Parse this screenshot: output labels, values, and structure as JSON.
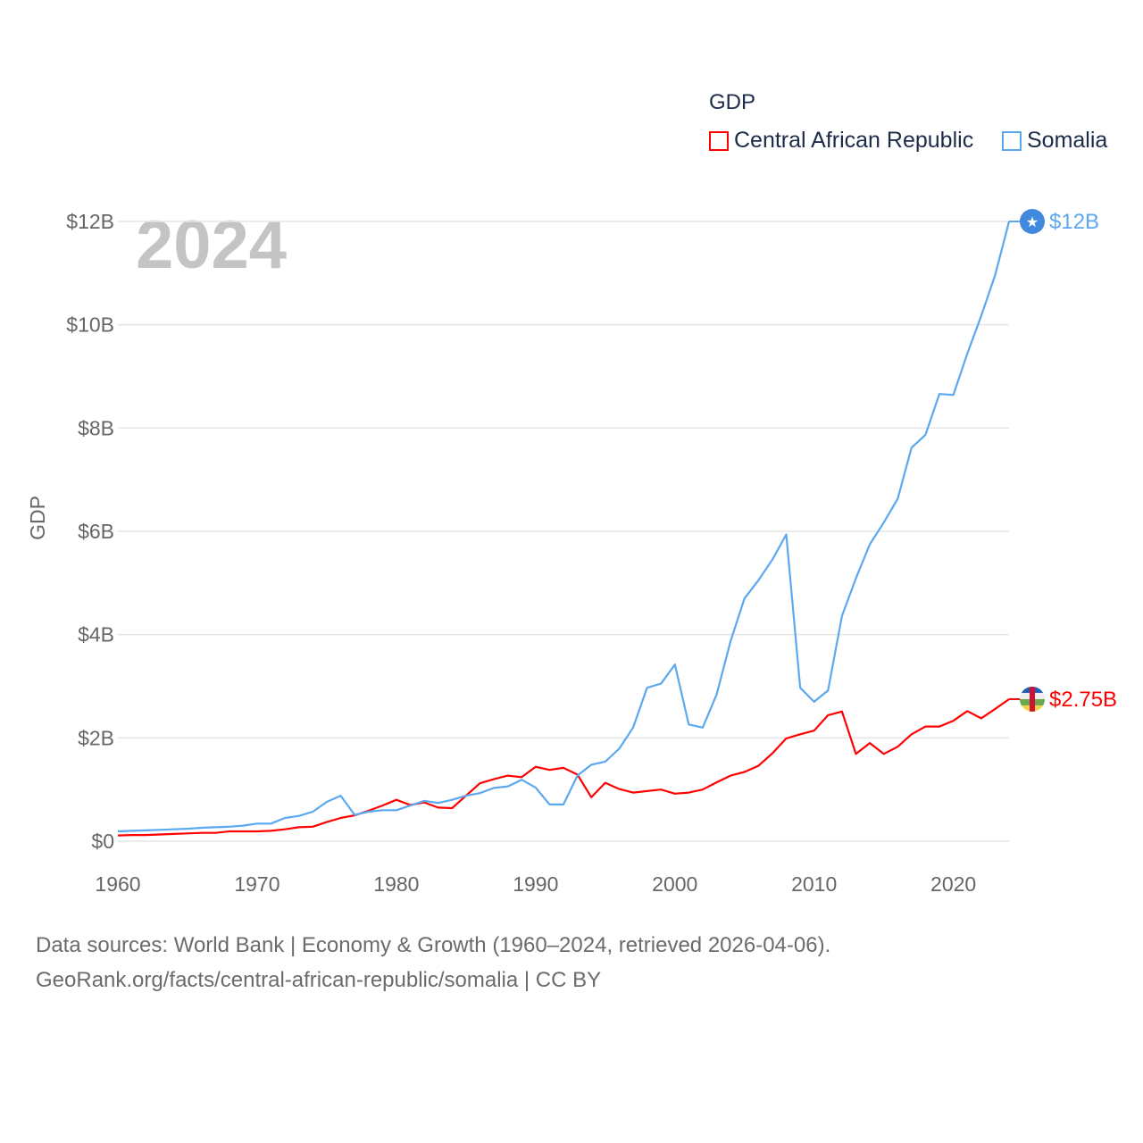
{
  "chart_data": {
    "type": "line",
    "title": "GDP",
    "ylabel": "GDP",
    "xlabel": "",
    "year_watermark": "2024",
    "xlim": [
      1960,
      2024
    ],
    "ylim": [
      0,
      12
    ],
    "x_ticks": [
      1960,
      1970,
      1980,
      1990,
      2000,
      2010,
      2020
    ],
    "y_ticks": [
      {
        "v": 0,
        "label": "$0"
      },
      {
        "v": 2,
        "label": "$2B"
      },
      {
        "v": 4,
        "label": "$4B"
      },
      {
        "v": 6,
        "label": "$6B"
      },
      {
        "v": 8,
        "label": "$8B"
      },
      {
        "v": 10,
        "label": "$10B"
      },
      {
        "v": 12,
        "label": "$12B"
      }
    ],
    "units": "USD billions",
    "grid": true,
    "legend_placement": "top-right",
    "x_start": 1960,
    "series": [
      {
        "name": "Central African Republic",
        "color": "#ff0000",
        "end_label": "$2.75B",
        "icon": "car-flag-icon",
        "values": [
          0.11,
          0.12,
          0.12,
          0.13,
          0.14,
          0.15,
          0.16,
          0.16,
          0.19,
          0.19,
          0.19,
          0.2,
          0.23,
          0.27,
          0.28,
          0.37,
          0.45,
          0.5,
          0.59,
          0.69,
          0.8,
          0.7,
          0.75,
          0.65,
          0.64,
          0.88,
          1.12,
          1.2,
          1.27,
          1.24,
          1.44,
          1.38,
          1.42,
          1.29,
          0.85,
          1.13,
          1.01,
          0.94,
          0.97,
          1.0,
          0.92,
          0.94,
          1.0,
          1.14,
          1.27,
          1.34,
          1.46,
          1.7,
          1.99,
          2.07,
          2.14,
          2.44,
          2.51,
          1.69,
          1.9,
          1.69,
          1.83,
          2.07,
          2.22,
          2.22,
          2.33,
          2.52,
          2.38,
          2.56,
          2.75
        ]
      },
      {
        "name": "Somalia",
        "color": "#5ba8f0",
        "end_label": "$12B",
        "icon": "somalia-flag-icon",
        "values": [
          0.19,
          0.2,
          0.21,
          0.22,
          0.23,
          0.24,
          0.26,
          0.27,
          0.28,
          0.3,
          0.34,
          0.34,
          0.45,
          0.49,
          0.57,
          0.76,
          0.88,
          0.51,
          0.57,
          0.6,
          0.6,
          0.69,
          0.78,
          0.74,
          0.8,
          0.88,
          0.93,
          1.03,
          1.06,
          1.19,
          1.04,
          0.71,
          0.71,
          1.27,
          1.48,
          1.54,
          1.79,
          2.2,
          2.97,
          3.05,
          3.42,
          2.26,
          2.2,
          2.84,
          3.87,
          4.7,
          5.05,
          5.45,
          5.94,
          2.97,
          2.7,
          2.92,
          4.36,
          5.09,
          5.75,
          6.17,
          6.63,
          7.62,
          7.87,
          8.66,
          8.64,
          9.44,
          10.17,
          10.96,
          12.0
        ]
      }
    ]
  },
  "footer": {
    "line1": "Data sources: World Bank | Economy & Growth (1960–2024, retrieved 2026-04-06).",
    "line2": "GeoRank.org/facts/central-african-republic/somalia | CC BY"
  }
}
